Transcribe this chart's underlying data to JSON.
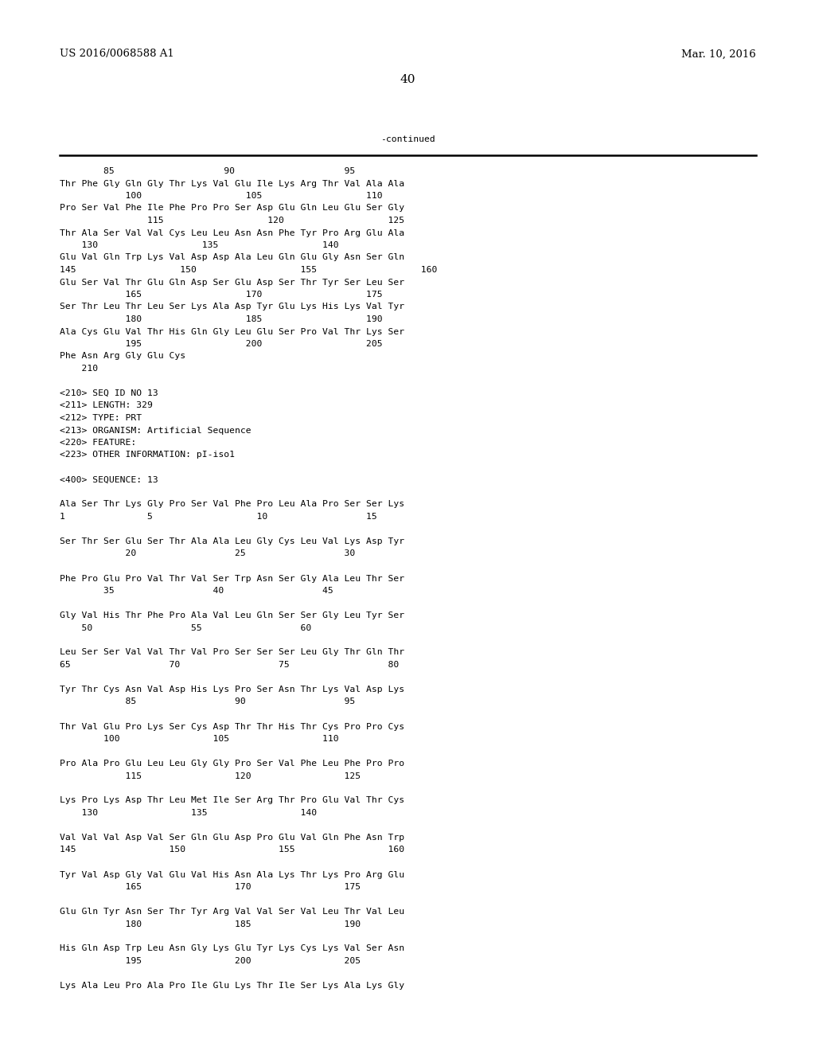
{
  "header_left": "US 2016/0068588 A1",
  "header_right": "Mar. 10, 2016",
  "page_number": "40",
  "continued_label": "-continued",
  "background_color": "#ffffff",
  "text_color": "#000000",
  "font_size": 8.2,
  "mono_font": "DejaVu Sans Mono",
  "content_lines": [
    "        85                    90                    95",
    "Thr Phe Gly Gln Gly Thr Lys Val Glu Ile Lys Arg Thr Val Ala Ala",
    "            100                   105                   110",
    "Pro Ser Val Phe Ile Phe Pro Pro Ser Asp Glu Gln Leu Glu Ser Gly",
    "                115                   120                   125",
    "Thr Ala Ser Val Val Cys Leu Leu Asn Asn Phe Tyr Pro Arg Glu Ala",
    "    130                   135                   140",
    "Glu Val Gln Trp Lys Val Asp Asp Ala Leu Gln Glu Gly Asn Ser Gln",
    "145                   150                   155                   160",
    "Glu Ser Val Thr Glu Gln Asp Ser Glu Asp Ser Thr Tyr Ser Leu Ser",
    "            165                   170                   175",
    "Ser Thr Leu Thr Leu Ser Lys Ala Asp Tyr Glu Lys His Lys Val Tyr",
    "            180                   185                   190",
    "Ala Cys Glu Val Thr His Gln Gly Leu Glu Ser Pro Val Thr Lys Ser",
    "            195                   200                   205",
    "Phe Asn Arg Gly Glu Cys",
    "    210",
    "",
    "<210> SEQ ID NO 13",
    "<211> LENGTH: 329",
    "<212> TYPE: PRT",
    "<213> ORGANISM: Artificial Sequence",
    "<220> FEATURE:",
    "<223> OTHER INFORMATION: pI-iso1",
    "",
    "<400> SEQUENCE: 13",
    "",
    "Ala Ser Thr Lys Gly Pro Ser Val Phe Pro Leu Ala Pro Ser Ser Lys",
    "1               5                   10                  15",
    "",
    "Ser Thr Ser Glu Ser Thr Ala Ala Leu Gly Cys Leu Val Lys Asp Tyr",
    "            20                  25                  30",
    "",
    "Phe Pro Glu Pro Val Thr Val Ser Trp Asn Ser Gly Ala Leu Thr Ser",
    "        35                  40                  45",
    "",
    "Gly Val His Thr Phe Pro Ala Val Leu Gln Ser Ser Gly Leu Tyr Ser",
    "    50                  55                  60",
    "",
    "Leu Ser Ser Val Val Thr Val Pro Ser Ser Ser Leu Gly Thr Gln Thr",
    "65                  70                  75                  80",
    "",
    "Tyr Thr Cys Asn Val Asp His Lys Pro Ser Asn Thr Lys Val Asp Lys",
    "            85                  90                  95",
    "",
    "Thr Val Glu Pro Lys Ser Cys Asp Thr Thr His Thr Cys Pro Pro Cys",
    "        100                 105                 110",
    "",
    "Pro Ala Pro Glu Leu Leu Gly Gly Pro Ser Val Phe Leu Phe Pro Pro",
    "            115                 120                 125",
    "",
    "Lys Pro Lys Asp Thr Leu Met Ile Ser Arg Thr Pro Glu Val Thr Cys",
    "    130                 135                 140",
    "",
    "Val Val Val Asp Val Ser Gln Glu Asp Pro Glu Val Gln Phe Asn Trp",
    "145                 150                 155                 160",
    "",
    "Tyr Val Asp Gly Val Glu Val His Asn Ala Lys Thr Lys Pro Arg Glu",
    "            165                 170                 175",
    "",
    "Glu Gln Tyr Asn Ser Thr Tyr Arg Val Val Ser Val Leu Thr Val Leu",
    "            180                 185                 190",
    "",
    "His Gln Asp Trp Leu Asn Gly Lys Glu Tyr Lys Cys Lys Val Ser Asn",
    "            195                 200                 205",
    "",
    "Lys Ala Leu Pro Ala Pro Ile Glu Lys Thr Ile Ser Lys Ala Lys Gly"
  ]
}
